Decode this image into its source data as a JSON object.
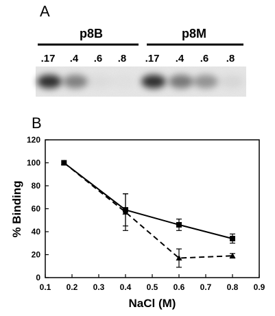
{
  "panel_a": {
    "letter": "A",
    "groups": [
      {
        "name": "p8B",
        "lanes": [
          ".17",
          ".4",
          ".6",
          ".8"
        ],
        "band_intensity": [
          1.0,
          0.55,
          0.05,
          0.03
        ]
      },
      {
        "name": "p8M",
        "lanes": [
          ".17",
          ".4",
          ".6",
          ".8"
        ],
        "band_intensity": [
          1.0,
          0.6,
          0.45,
          0.08
        ]
      }
    ]
  },
  "panel_b": {
    "letter": "B"
  },
  "chart_data": {
    "type": "line",
    "title": "",
    "xlabel": "NaCl (M)",
    "ylabel": "% Binding",
    "xlim": [
      0.1,
      0.9
    ],
    "ylim": [
      0,
      120
    ],
    "xticks": [
      "0.1",
      "0.2",
      "0.3",
      "0.4",
      "0.5",
      "0.6",
      "0.7",
      "0.8",
      "0.9"
    ],
    "yticks": [
      "0",
      "20",
      "40",
      "60",
      "80",
      "100",
      "120"
    ],
    "grid": false,
    "series": [
      {
        "style": "solid",
        "marker": "square",
        "x": [
          0.17,
          0.4,
          0.6,
          0.8
        ],
        "y": [
          100,
          59,
          46,
          34
        ],
        "err": [
          0,
          14,
          5,
          4
        ]
      },
      {
        "style": "dashed",
        "marker": "triangle",
        "x": [
          0.17,
          0.4,
          0.6,
          0.8
        ],
        "y": [
          100,
          57,
          17,
          19
        ],
        "err": [
          0,
          16,
          8,
          2
        ]
      }
    ]
  }
}
